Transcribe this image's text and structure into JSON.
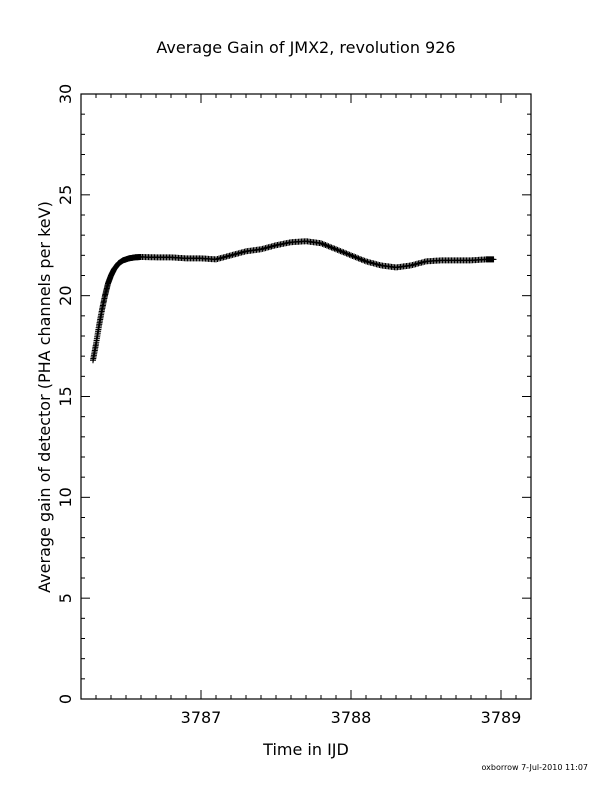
{
  "chart_data": {
    "type": "scatter",
    "title": "Average Gain of JMX2, revolution 926",
    "xlabel": "Time in IJD",
    "ylabel": "Average gain of detector (PHA channels per keV)",
    "xlim": [
      3786.2,
      3789.2
    ],
    "ylim": [
      0,
      30
    ],
    "x_ticks": [
      "3787",
      "3788",
      "3789"
    ],
    "y_ticks": [
      "0",
      "5",
      "10",
      "15",
      "20",
      "25",
      "30"
    ],
    "marker": "plus",
    "grid": false,
    "series": [
      {
        "x": [
          3786.28,
          3786.3,
          3786.32,
          3786.34,
          3786.36,
          3786.38,
          3786.4,
          3786.42,
          3786.45,
          3786.48,
          3786.52,
          3786.56,
          3786.6,
          3786.7,
          3786.8,
          3786.9,
          3787.0,
          3787.1,
          3787.2,
          3787.3,
          3787.4,
          3787.5,
          3787.6,
          3787.7,
          3787.8,
          3787.9,
          3788.0,
          3788.1,
          3788.2,
          3788.3,
          3788.4,
          3788.5,
          3788.6,
          3788.7,
          3788.8,
          3788.9,
          3788.95
        ],
        "y": [
          16.8,
          17.6,
          18.5,
          19.3,
          20.0,
          20.6,
          21.0,
          21.3,
          21.6,
          21.75,
          21.85,
          21.9,
          21.92,
          21.9,
          21.9,
          21.85,
          21.85,
          21.8,
          22.0,
          22.2,
          22.3,
          22.5,
          22.65,
          22.7,
          22.6,
          22.3,
          22.0,
          21.7,
          21.5,
          21.4,
          21.5,
          21.7,
          21.75,
          21.75,
          21.75,
          21.8,
          21.8
        ]
      }
    ]
  },
  "footer_text": "oxborrow   7-Jul-2010 11:07"
}
